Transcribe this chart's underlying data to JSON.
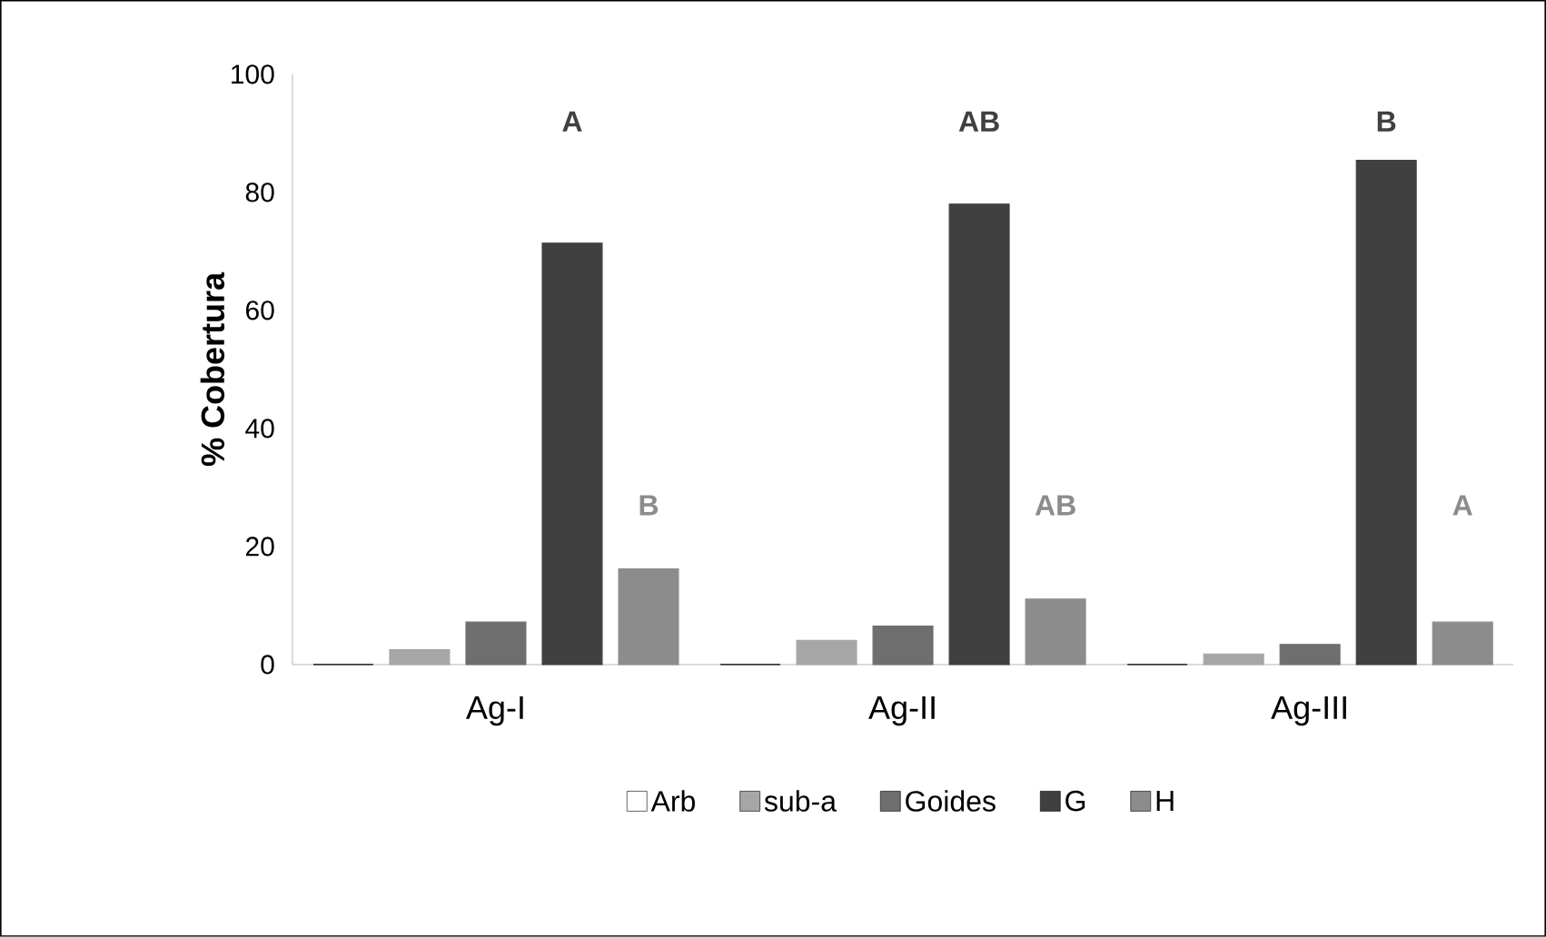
{
  "chart_data": {
    "type": "bar",
    "ylabel": "% Cobertura",
    "categories": [
      "Ag-I",
      "Ag-II",
      "Ag-III"
    ],
    "series": [
      {
        "name": "Arb",
        "color": "#ffffff",
        "values": [
          0,
          0,
          0
        ]
      },
      {
        "name": "sub-a",
        "color": "#a6a6a6",
        "values": [
          2.5,
          4.1,
          1.8
        ]
      },
      {
        "name": "Goides",
        "color": "#6e6e6e",
        "values": [
          7.2,
          6.5,
          3.4
        ]
      },
      {
        "name": "G",
        "color": "#404040",
        "values": [
          71.4,
          78,
          85.4
        ]
      },
      {
        "name": "H",
        "color": "#8c8c8c",
        "values": [
          16.2,
          11.1,
          7.2
        ]
      }
    ],
    "ylim": [
      0,
      100
    ],
    "yticks": [
      0,
      20,
      40,
      60,
      80,
      100
    ],
    "grid": false,
    "legend": "bottom",
    "annotations": [
      "A",
      "B",
      "AB",
      "AB",
      "B",
      "A"
    ]
  }
}
